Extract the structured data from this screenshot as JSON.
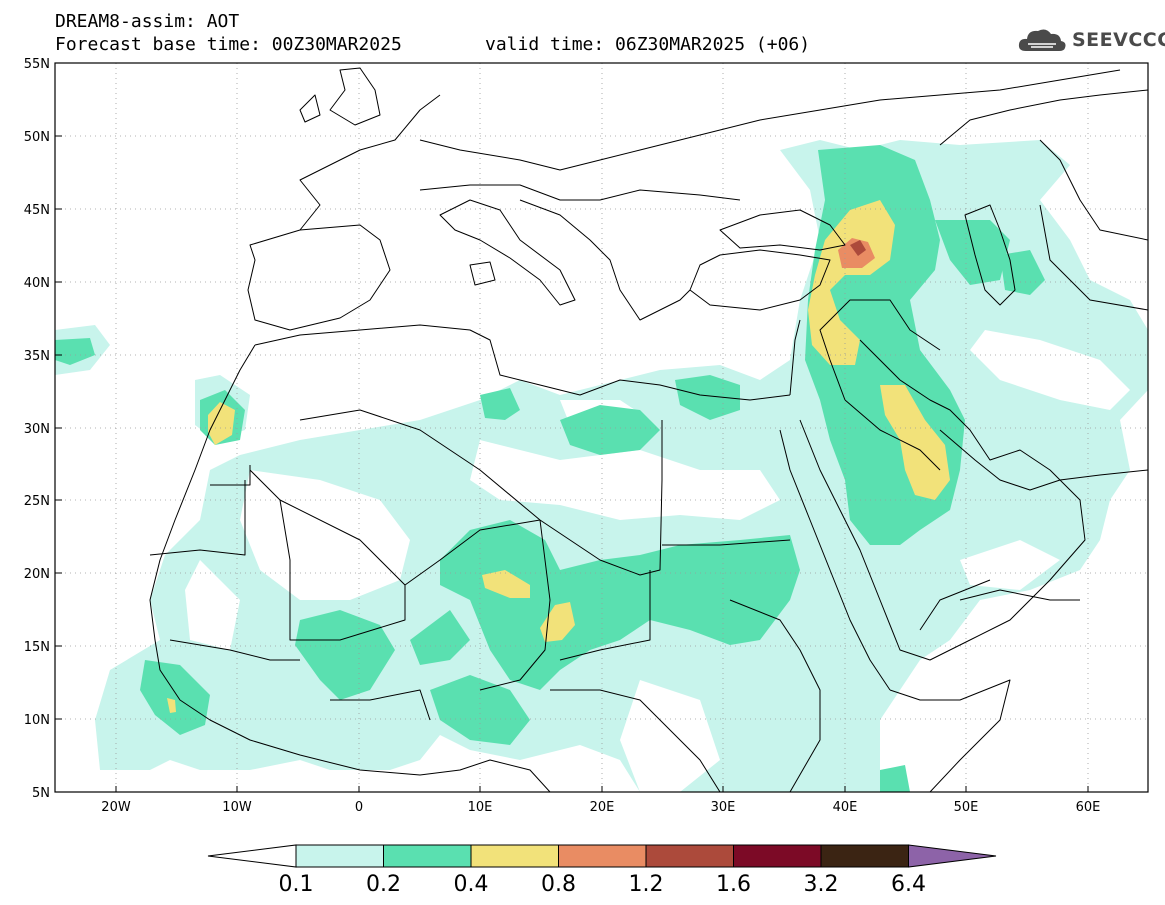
{
  "header": {
    "title": "DREAM8-assim: AOT",
    "base_time": "Forecast base time: 00Z30MAR2025",
    "valid_time": "valid time: 06Z30MAR2025 (+06)"
  },
  "logo": {
    "text": "SEEVCCC"
  },
  "map": {
    "lat_labels": [
      "55N",
      "50N",
      "45N",
      "40N",
      "35N",
      "30N",
      "25N",
      "20N",
      "15N",
      "10N",
      "5N"
    ],
    "lon_labels": [
      "20W",
      "10W",
      "0",
      "10E",
      "20E",
      "30E",
      "40E",
      "50E",
      "60E"
    ]
  },
  "legend": {
    "labels": [
      "0.1",
      "0.2",
      "0.4",
      "0.8",
      "1.2",
      "1.6",
      "3.2",
      "6.4"
    ],
    "colors": [
      "#ffffff",
      "#c8f4ec",
      "#5ae0b0",
      "#f2e27a",
      "#e98c63",
      "#ac4a3b",
      "#7c0a26",
      "#3b2413",
      "#8d63a8"
    ]
  }
}
